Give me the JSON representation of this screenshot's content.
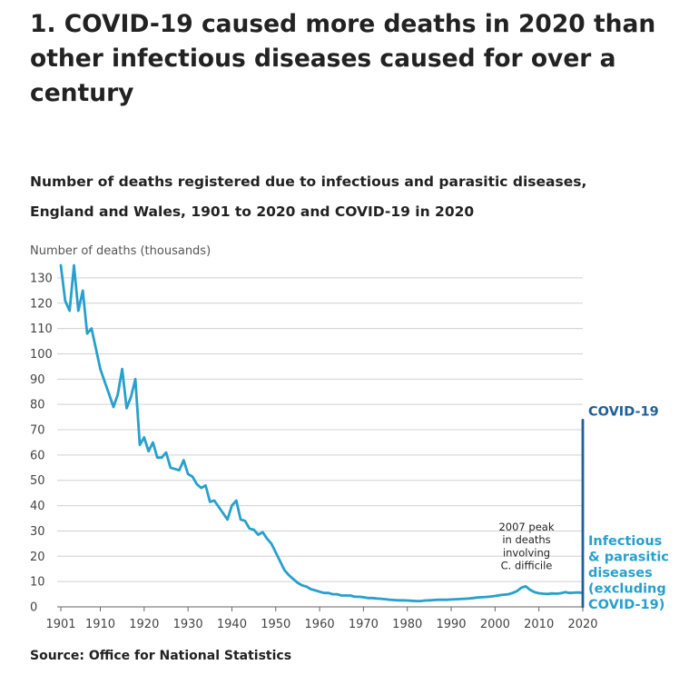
{
  "heading": "1. COVID-19 caused more deaths in 2020 than other infectious diseases caused for over a century",
  "colors": {
    "infectious": "#27a0cc",
    "covid": "#206095",
    "grid": "#d0d0d0",
    "axis": "#666666",
    "text": "#222222",
    "annotation": "#222222"
  },
  "chart_data": {
    "type": "line",
    "title": "Number of deaths registered due to infectious and parasitic diseases, England and Wales, 1901 to 2020 and COVID-19 in 2020",
    "ylabel": "Number of deaths (thousands)",
    "xlabel": "",
    "xlim": [
      1901,
      2020
    ],
    "ylim": [
      0,
      135
    ],
    "yticks": [
      0,
      10,
      20,
      30,
      40,
      50,
      60,
      70,
      80,
      90,
      100,
      110,
      120,
      130
    ],
    "xticks": [
      1901,
      1910,
      1920,
      1930,
      1940,
      1950,
      1960,
      1970,
      1980,
      1990,
      2000,
      2010,
      2020
    ],
    "grid": true,
    "series": [
      {
        "name": "Infectious & parasitic diseases (excluding COVID-19)",
        "label_lines": [
          "Infectious",
          "& parasitic",
          "diseases",
          "(excluding",
          "COVID-19)"
        ],
        "x": [
          1901,
          1902,
          1903,
          1904,
          1905,
          1906,
          1907,
          1908,
          1909,
          1910,
          1911,
          1912,
          1913,
          1914,
          1915,
          1916,
          1917,
          1918,
          1919,
          1920,
          1921,
          1922,
          1923,
          1924,
          1925,
          1926,
          1927,
          1928,
          1929,
          1930,
          1931,
          1932,
          1933,
          1934,
          1935,
          1936,
          1937,
          1938,
          1939,
          1940,
          1941,
          1942,
          1943,
          1944,
          1945,
          1946,
          1947,
          1948,
          1949,
          1950,
          1951,
          1952,
          1953,
          1954,
          1955,
          1956,
          1957,
          1958,
          1959,
          1960,
          1961,
          1962,
          1963,
          1964,
          1965,
          1966,
          1967,
          1968,
          1969,
          1970,
          1971,
          1972,
          1973,
          1974,
          1975,
          1976,
          1977,
          1978,
          1979,
          1980,
          1981,
          1982,
          1983,
          1984,
          1985,
          1986,
          1987,
          1988,
          1989,
          1990,
          1991,
          1992,
          1993,
          1994,
          1995,
          1996,
          1997,
          1998,
          1999,
          2000,
          2001,
          2002,
          2003,
          2004,
          2005,
          2006,
          2007,
          2008,
          2009,
          2010,
          2011,
          2012,
          2013,
          2014,
          2015,
          2016,
          2017,
          2018,
          2019,
          2020
        ],
        "values": [
          135,
          121,
          117,
          135,
          117,
          125,
          108,
          110,
          102,
          94,
          89,
          84,
          79,
          84,
          94,
          78.5,
          83,
          90,
          64,
          67,
          61.5,
          65,
          59,
          59,
          61,
          55,
          54.5,
          54,
          58,
          52.5,
          51.5,
          48.5,
          47,
          48,
          41.5,
          42,
          39.5,
          37,
          34.5,
          40,
          42,
          34.5,
          34,
          31,
          30.5,
          28.5,
          29.5,
          27,
          25,
          21.5,
          18,
          14.5,
          12.5,
          11,
          9.5,
          8.5,
          8,
          7,
          6.5,
          6,
          5.5,
          5.5,
          5,
          5,
          4.5,
          4.5,
          4.5,
          4,
          4,
          3.8,
          3.5,
          3.5,
          3.3,
          3.2,
          3,
          2.8,
          2.7,
          2.6,
          2.6,
          2.5,
          2.4,
          2.3,
          2.3,
          2.5,
          2.6,
          2.7,
          2.8,
          2.8,
          2.8,
          2.9,
          3,
          3.1,
          3.2,
          3.3,
          3.5,
          3.7,
          3.8,
          3.9,
          4.1,
          4.3,
          4.6,
          4.8,
          5,
          5.5,
          6.2,
          7.6,
          8.1,
          6.7,
          5.8,
          5.4,
          5.2,
          5.1,
          5.3,
          5.2,
          5.4,
          5.8,
          5.5,
          5.6,
          5.7,
          5.5
        ]
      },
      {
        "name": "COVID-19",
        "x": [
          2020
        ],
        "values": [
          73.8
        ]
      }
    ],
    "annotations": [
      {
        "year": 2007,
        "lines": [
          "2007 peak",
          "in deaths",
          "involving",
          "C. difficile"
        ]
      }
    ]
  },
  "source": "Source: Office for National Statistics"
}
